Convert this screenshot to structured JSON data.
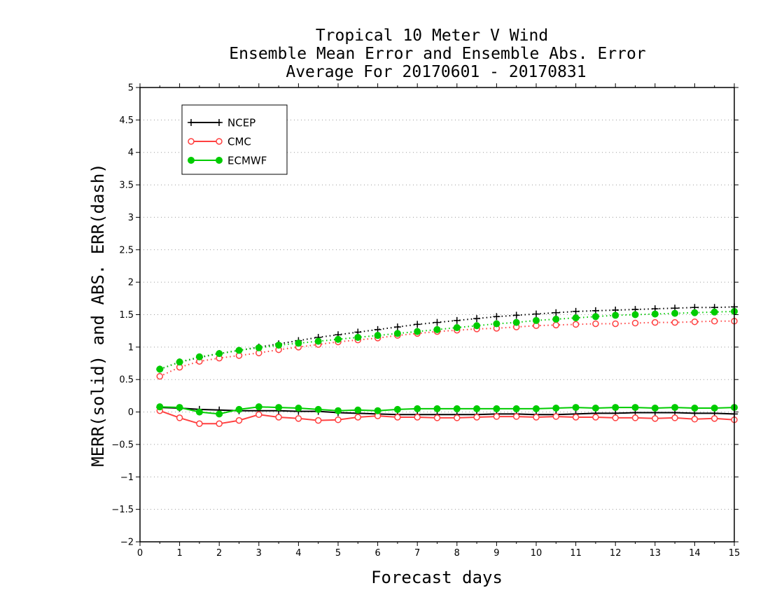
{
  "chart_data": {
    "type": "line",
    "title": [
      "Tropical 10 Meter V Wind",
      "Ensemble Mean Error and Ensemble Abs. Error",
      "Average For 20170601 - 20170831"
    ],
    "xlabel": "Forecast days",
    "ylabel": "MERR(solid) and ABS. ERR(dash)",
    "xlim": [
      0,
      15
    ],
    "ylim": [
      -2,
      5
    ],
    "xticks": [
      "0",
      "1",
      "2",
      "3",
      "4",
      "5",
      "6",
      "7",
      "8",
      "9",
      "10",
      "11",
      "12",
      "13",
      "14",
      "15"
    ],
    "yticks": [
      "−2",
      "−1.5",
      "−1",
      "−0.5",
      "0",
      "0.5",
      "1",
      "1.5",
      "2",
      "2.5",
      "3",
      "3.5",
      "4",
      "4.5",
      "5"
    ],
    "ytick_values": [
      -2,
      -1.5,
      -1,
      -0.5,
      0,
      0.5,
      1,
      1.5,
      2,
      2.5,
      3,
      3.5,
      4,
      4.5,
      5
    ],
    "grid": "horizontal-dotted",
    "legend_position": "top-left",
    "x": [
      0.5,
      1,
      1.5,
      2,
      2.5,
      3,
      3.5,
      4,
      4.5,
      5,
      5.5,
      6,
      6.5,
      7,
      7.5,
      8,
      8.5,
      9,
      9.5,
      10,
      10.5,
      11,
      11.5,
      12,
      12.5,
      13,
      13.5,
      14,
      14.5,
      15
    ],
    "series": [
      {
        "name": "NCEP",
        "color": "#000000",
        "marker": "plus",
        "merr": [
          0.07,
          0.06,
          0.04,
          0.03,
          0.02,
          0.02,
          0.02,
          0.01,
          0.01,
          -0.01,
          -0.02,
          -0.03,
          -0.04,
          -0.04,
          -0.04,
          -0.04,
          -0.04,
          -0.03,
          -0.03,
          -0.04,
          -0.04,
          -0.03,
          -0.02,
          -0.02,
          -0.01,
          -0.01,
          -0.01,
          -0.02,
          -0.02,
          -0.03
        ],
        "abs_err": [
          0.66,
          0.77,
          0.84,
          0.9,
          0.95,
          1.0,
          1.05,
          1.1,
          1.15,
          1.19,
          1.23,
          1.27,
          1.31,
          1.35,
          1.38,
          1.41,
          1.44,
          1.47,
          1.49,
          1.51,
          1.53,
          1.55,
          1.56,
          1.57,
          1.58,
          1.59,
          1.6,
          1.61,
          1.61,
          1.62
        ]
      },
      {
        "name": "CMC",
        "color": "#ff4040",
        "marker": "open-circle",
        "merr": [
          0.02,
          -0.09,
          -0.18,
          -0.18,
          -0.13,
          -0.04,
          -0.08,
          -0.1,
          -0.13,
          -0.12,
          -0.08,
          -0.06,
          -0.08,
          -0.08,
          -0.09,
          -0.09,
          -0.08,
          -0.07,
          -0.07,
          -0.08,
          -0.07,
          -0.08,
          -0.08,
          -0.09,
          -0.09,
          -0.1,
          -0.09,
          -0.11,
          -0.1,
          -0.12
        ],
        "abs_err": [
          0.55,
          0.69,
          0.78,
          0.83,
          0.87,
          0.91,
          0.96,
          1.0,
          1.04,
          1.08,
          1.11,
          1.14,
          1.18,
          1.21,
          1.24,
          1.26,
          1.28,
          1.29,
          1.31,
          1.33,
          1.34,
          1.35,
          1.36,
          1.36,
          1.37,
          1.38,
          1.38,
          1.39,
          1.4,
          1.4
        ]
      },
      {
        "name": "ECMWF",
        "color": "#00cc00",
        "marker": "filled-circle",
        "merr": [
          0.08,
          0.07,
          0.0,
          -0.03,
          0.04,
          0.08,
          0.07,
          0.06,
          0.04,
          0.02,
          0.03,
          0.02,
          0.04,
          0.05,
          0.05,
          0.05,
          0.05,
          0.05,
          0.05,
          0.05,
          0.06,
          0.07,
          0.06,
          0.07,
          0.07,
          0.06,
          0.07,
          0.06,
          0.06,
          0.07
        ],
        "abs_err": [
          0.66,
          0.77,
          0.85,
          0.9,
          0.95,
          0.99,
          1.03,
          1.06,
          1.09,
          1.12,
          1.15,
          1.18,
          1.21,
          1.24,
          1.27,
          1.3,
          1.33,
          1.36,
          1.38,
          1.41,
          1.43,
          1.45,
          1.47,
          1.49,
          1.5,
          1.51,
          1.52,
          1.53,
          1.54,
          1.55
        ]
      }
    ]
  }
}
